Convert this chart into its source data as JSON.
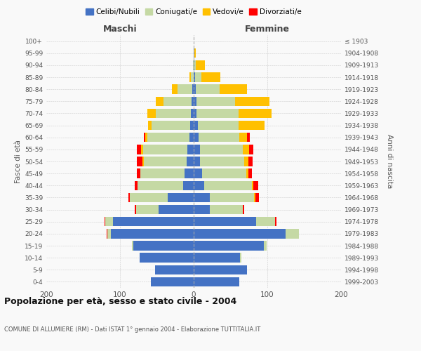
{
  "age_groups": [
    "0-4",
    "5-9",
    "10-14",
    "15-19",
    "20-24",
    "25-29",
    "30-34",
    "35-39",
    "40-44",
    "45-49",
    "50-54",
    "55-59",
    "60-64",
    "65-69",
    "70-74",
    "75-79",
    "80-84",
    "85-89",
    "90-94",
    "95-99",
    "100+"
  ],
  "birth_years": [
    "1999-2003",
    "1994-1998",
    "1989-1993",
    "1984-1988",
    "1979-1983",
    "1974-1978",
    "1969-1973",
    "1964-1968",
    "1959-1963",
    "1954-1958",
    "1949-1953",
    "1944-1948",
    "1939-1943",
    "1934-1938",
    "1929-1933",
    "1924-1928",
    "1919-1923",
    "1914-1918",
    "1909-1913",
    "1904-1908",
    "≤ 1903"
  ],
  "maschi": {
    "celibe": [
      58,
      52,
      73,
      82,
      112,
      110,
      48,
      35,
      14,
      12,
      10,
      9,
      6,
      5,
      4,
      3,
      2,
      0,
      0,
      0,
      0
    ],
    "coniugato": [
      0,
      0,
      0,
      2,
      5,
      10,
      30,
      52,
      62,
      60,
      58,
      60,
      57,
      52,
      47,
      38,
      20,
      4,
      1,
      0,
      0
    ],
    "vedovo": [
      0,
      0,
      0,
      0,
      0,
      0,
      0,
      0,
      0,
      0,
      2,
      2,
      3,
      5,
      12,
      10,
      8,
      2,
      0,
      0,
      0
    ],
    "divorziato": [
      0,
      0,
      0,
      0,
      1,
      1,
      2,
      2,
      4,
      5,
      7,
      6,
      2,
      0,
      0,
      0,
      0,
      0,
      0,
      0,
      0
    ]
  },
  "femmine": {
    "nubile": [
      62,
      72,
      63,
      95,
      125,
      85,
      22,
      22,
      14,
      11,
      9,
      9,
      7,
      6,
      4,
      4,
      3,
      2,
      1,
      1,
      0
    ],
    "coniugata": [
      0,
      0,
      2,
      4,
      18,
      25,
      45,
      60,
      65,
      60,
      60,
      58,
      55,
      55,
      57,
      52,
      32,
      8,
      2,
      0,
      0
    ],
    "vedova": [
      0,
      0,
      0,
      0,
      0,
      0,
      0,
      2,
      2,
      3,
      5,
      8,
      10,
      35,
      45,
      47,
      37,
      26,
      12,
      2,
      0
    ],
    "divorziata": [
      0,
      0,
      0,
      0,
      0,
      2,
      2,
      5,
      7,
      5,
      6,
      6,
      4,
      0,
      0,
      0,
      0,
      0,
      0,
      0,
      0
    ]
  },
  "colors": {
    "celibe": "#4472C4",
    "coniugato": "#C5D9A4",
    "vedovo": "#FFC000",
    "divorziato": "#FF0000"
  },
  "title": "Popolazione per età, sesso e stato civile - 2004",
  "subtitle": "COMUNE DI ALLUMIERE (RM) - Dati ISTAT 1° gennaio 2004 - Elaborazione TUTTITALIA.IT",
  "maschi_label": "Maschi",
  "femmine_label": "Femmine",
  "ylabel_left": "Fasce di età",
  "ylabel_right": "Anni di nascita",
  "legend_labels": [
    "Celibi/Nubili",
    "Coniugati/e",
    "Vedovi/e",
    "Divorziati/e"
  ],
  "xlim": 200,
  "background_color": "#f9f9f9",
  "grid_color": "#cccccc"
}
